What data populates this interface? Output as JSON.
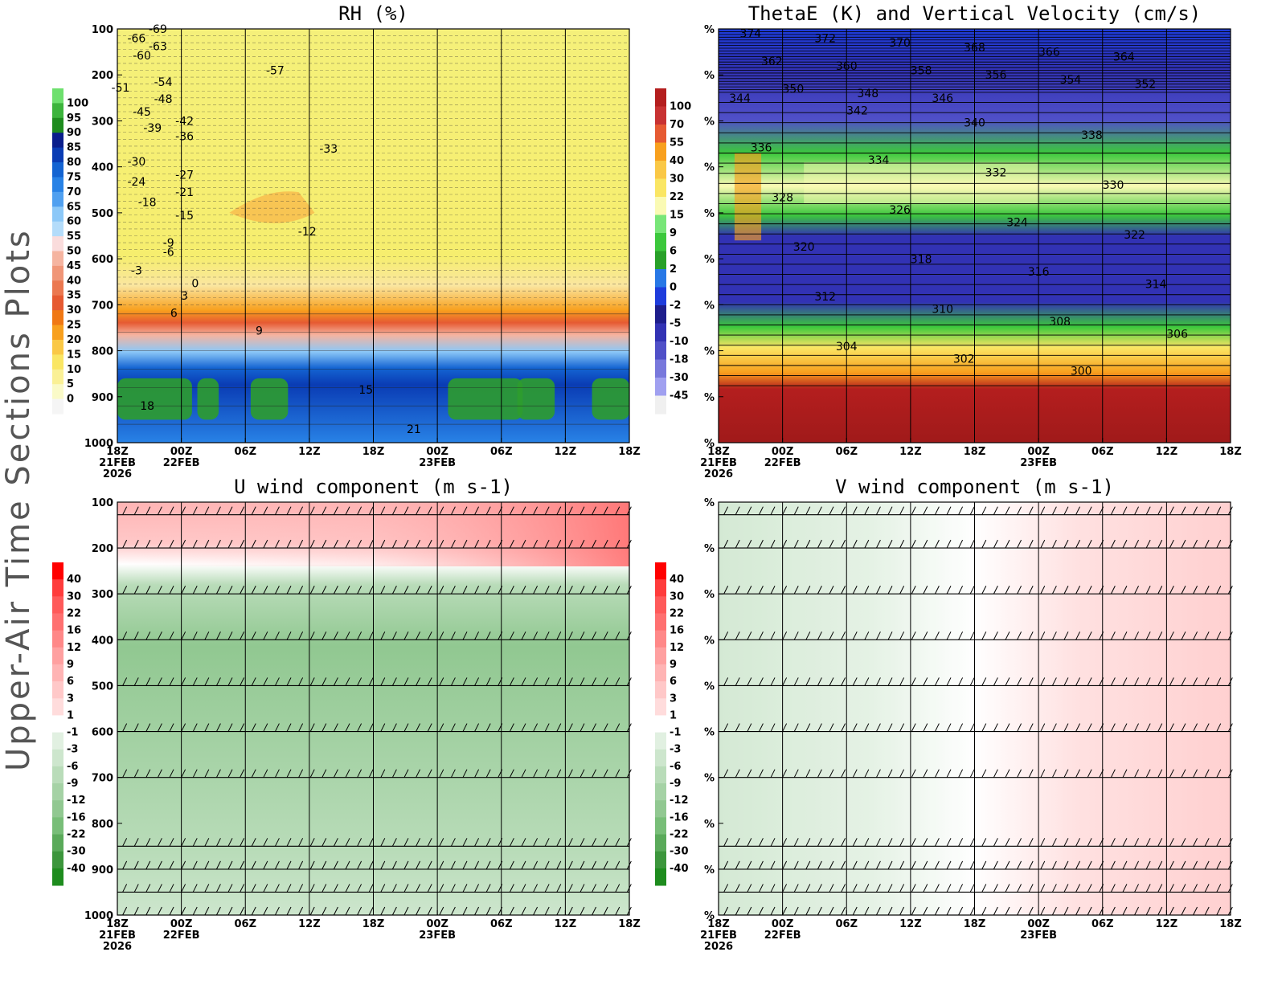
{
  "figure_title": "Upper-Air Time Sections Plots",
  "chart_data": [
    {
      "id": "rh",
      "type": "heatmap",
      "title": "RH (%)",
      "y_ticks": [
        "100",
        "200",
        "300",
        "400",
        "500",
        "600",
        "700",
        "800",
        "900",
        "1000"
      ],
      "x_ticks": [
        "18Z",
        "00Z",
        "06Z",
        "12Z",
        "18Z",
        "00Z",
        "06Z",
        "12Z",
        "18Z"
      ],
      "x_dates": [
        "21FEB",
        "22FEB",
        "",
        "",
        "",
        "23FEB",
        "",
        "",
        ""
      ],
      "x_year": "2026",
      "colorbar": {
        "labels": [
          "100",
          "95",
          "90",
          "85",
          "80",
          "75",
          "70",
          "65",
          "60",
          "55",
          "50",
          "45",
          "40",
          "35",
          "30",
          "25",
          "20",
          "15",
          "10",
          "5",
          "0"
        ],
        "colors": [
          "#6ee06e",
          "#3cb43c",
          "#1e8c1e",
          "#0a1e8c",
          "#0a3cb4",
          "#1464d2",
          "#2882e6",
          "#50a0f0",
          "#8cc8f8",
          "#b4dcfa",
          "#fadcdc",
          "#f5b4a0",
          "#f09678",
          "#eb7850",
          "#e65a32",
          "#f07814",
          "#f8a01e",
          "#fac846",
          "#fae664",
          "#faf096",
          "#fafac8",
          "#f5f5f5"
        ]
      },
      "temperature_contours_C": [
        {
          "value": "-69",
          "x_hour": 3,
          "p": 100
        },
        {
          "value": "-66",
          "x_hour": 1,
          "p": 120
        },
        {
          "value": "-63",
          "x_hour": 3,
          "p": 138
        },
        {
          "value": "-60",
          "x_hour": 1.5,
          "p": 158
        },
        {
          "value": "-57",
          "x_hour": 14,
          "p": 190
        },
        {
          "value": "-54",
          "x_hour": 3.5,
          "p": 215
        },
        {
          "value": "-51",
          "x_hour": -0.5,
          "p": 228
        },
        {
          "value": "-48",
          "x_hour": 3.5,
          "p": 252
        },
        {
          "value": "-45",
          "x_hour": 1.5,
          "p": 280
        },
        {
          "value": "-42",
          "x_hour": 5.5,
          "p": 300
        },
        {
          "value": "-39",
          "x_hour": 2.5,
          "p": 315
        },
        {
          "value": "-36",
          "x_hour": 5.5,
          "p": 333
        },
        {
          "value": "-33",
          "x_hour": 19,
          "p": 360
        },
        {
          "value": "-30",
          "x_hour": 1,
          "p": 388
        },
        {
          "value": "-27",
          "x_hour": 5.5,
          "p": 417
        },
        {
          "value": "-24",
          "x_hour": 1,
          "p": 432
        },
        {
          "value": "-21",
          "x_hour": 5.5,
          "p": 455
        },
        {
          "value": "-18",
          "x_hour": 2,
          "p": 477
        },
        {
          "value": "-15",
          "x_hour": 5.5,
          "p": 505
        },
        {
          "value": "-12",
          "x_hour": 17,
          "p": 540
        },
        {
          "value": "-9",
          "x_hour": 4,
          "p": 565
        },
        {
          "value": "-6",
          "x_hour": 4,
          "p": 585
        },
        {
          "value": "-3",
          "x_hour": 1,
          "p": 625
        },
        {
          "value": "0",
          "x_hour": 6.5,
          "p": 653
        },
        {
          "value": "3",
          "x_hour": 5.5,
          "p": 680
        },
        {
          "value": "6",
          "x_hour": 4.5,
          "p": 718
        },
        {
          "value": "9",
          "x_hour": 12.5,
          "p": 756
        },
        {
          "value": "15",
          "x_hour": 22.5,
          "p": 885
        },
        {
          "value": "18",
          "x_hour": 2,
          "p": 920
        },
        {
          "value": "21",
          "x_hour": 27,
          "p": 970
        }
      ]
    },
    {
      "id": "thetae",
      "type": "heatmap",
      "title": "ThetaE (K) and Vertical Velocity (cm/s)",
      "y_ticks": [
        "%",
        "%",
        "%",
        "%",
        "%",
        "%",
        "%",
        "%",
        "%",
        "%"
      ],
      "x_ticks": [
        "18Z",
        "00Z",
        "06Z",
        "12Z",
        "18Z",
        "00Z",
        "06Z",
        "12Z",
        "18Z"
      ],
      "x_dates": [
        "21FEB",
        "22FEB",
        "",
        "",
        "",
        "23FEB",
        "",
        "",
        ""
      ],
      "x_year": "2026",
      "colorbar": {
        "labels": [
          "100",
          "70",
          "55",
          "40",
          "30",
          "22",
          "15",
          "9",
          "6",
          "2",
          "0",
          "-2",
          "-5",
          "-10",
          "-18",
          "-30",
          "-45"
        ],
        "colors": [
          "#b41e1e",
          "#c83232",
          "#e65a32",
          "#f8a01e",
          "#fac846",
          "#fae664",
          "#fafab4",
          "#78e678",
          "#3cc83c",
          "#28a028",
          "#2878e6",
          "#1e3cdc",
          "#1e1e8c",
          "#3232b4",
          "#5050c8",
          "#7878dc",
          "#a0a0f0",
          "#f0f0f0"
        ]
      },
      "thetae_contours_K": [
        "374",
        "372",
        "370",
        "368",
        "366",
        "364",
        "362",
        "360",
        "358",
        "356",
        "354",
        "352",
        "350",
        "348",
        "346",
        "344",
        "342",
        "340",
        "338",
        "336",
        "334",
        "332",
        "330",
        "328",
        "326",
        "324",
        "322",
        "320",
        "318",
        "316",
        "314",
        "312",
        "310",
        "308",
        "306",
        "304",
        "302",
        "300"
      ]
    },
    {
      "id": "u",
      "type": "heatmap",
      "title": "U wind component (m s-1)",
      "y_ticks": [
        "100",
        "200",
        "300",
        "400",
        "500",
        "600",
        "700",
        "800",
        "900",
        "1000"
      ],
      "x_ticks": [
        "18Z",
        "00Z",
        "06Z",
        "12Z",
        "18Z",
        "00Z",
        "06Z",
        "12Z",
        "18Z"
      ],
      "x_dates": [
        "21FEB",
        "22FEB",
        "",
        "",
        "",
        "23FEB",
        "",
        "",
        ""
      ],
      "x_year": "2026",
      "colorbar": {
        "labels": [
          "40",
          "30",
          "22",
          "16",
          "12",
          "9",
          "6",
          "3",
          "1",
          "-1",
          "-3",
          "-6",
          "-9",
          "-12",
          "-16",
          "-22",
          "-30",
          "-40"
        ],
        "colors": [
          "#ff0000",
          "#ff3c3c",
          "#ff5a5a",
          "#ff7070",
          "#ff8888",
          "#ffa0a0",
          "#ffb4b4",
          "#ffc8c8",
          "#ffdcdc",
          "#ffffff",
          "#e1f0e1",
          "#cde6cd",
          "#b9dcb9",
          "#a5d2a5",
          "#91c891",
          "#78be78",
          "#5aaa5a",
          "#3c963c",
          "#1e8c1e"
        ]
      }
    },
    {
      "id": "v",
      "type": "heatmap",
      "title": "V wind component (m s-1)",
      "y_ticks": [
        "%",
        "%",
        "%",
        "%",
        "%",
        "%",
        "%",
        "%",
        "%",
        "%"
      ],
      "x_ticks": [
        "18Z",
        "00Z",
        "06Z",
        "12Z",
        "18Z",
        "00Z",
        "06Z",
        "12Z",
        "18Z"
      ],
      "x_dates": [
        "21FEB",
        "22FEB",
        "",
        "",
        "",
        "23FEB",
        "",
        "",
        ""
      ],
      "x_year": "2026",
      "colorbar": {
        "labels": [
          "40",
          "30",
          "22",
          "16",
          "12",
          "9",
          "6",
          "3",
          "1",
          "-1",
          "-3",
          "-6",
          "-9",
          "-12",
          "-16",
          "-22",
          "-30",
          "-40"
        ],
        "colors": [
          "#ff0000",
          "#ff3c3c",
          "#ff5a5a",
          "#ff7070",
          "#ff8888",
          "#ffa0a0",
          "#ffb4b4",
          "#ffc8c8",
          "#ffdcdc",
          "#ffffff",
          "#e1f0e1",
          "#cde6cd",
          "#b9dcb9",
          "#a5d2a5",
          "#91c891",
          "#78be78",
          "#5aaa5a",
          "#3c963c",
          "#1e8c1e"
        ]
      }
    }
  ]
}
